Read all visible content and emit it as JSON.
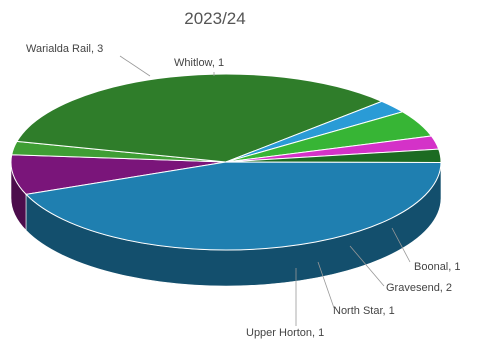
{
  "chart_data": {
    "type": "pie",
    "title": "2023/24",
    "slices": [
      {
        "label": "Warialda Rail, 3",
        "category": "Warialda Rail",
        "value": 3,
        "color": "#7a157a"
      },
      {
        "label": "Whitlow, 1",
        "category": "Whitlow",
        "value": 1,
        "color": "#3f9e34"
      },
      {
        "label": "",
        "category": "",
        "value": 14,
        "color": "#2f7d2a"
      },
      {
        "label": "Boonal, 1",
        "category": "Boonal",
        "value": 1,
        "color": "#2a9bd6"
      },
      {
        "label": "Gravesend, 2",
        "category": "Gravesend",
        "value": 2,
        "color": "#37b535"
      },
      {
        "label": "North Star, 1",
        "category": "North Star",
        "value": 1,
        "color": "#d432c8"
      },
      {
        "label": "Upper Horton, 1",
        "category": "Upper Horton",
        "value": 1,
        "color": "#1c6b22"
      },
      {
        "label": "",
        "category": "",
        "value": 18,
        "color": "#1f7fb0"
      }
    ],
    "style": "3d",
    "legend": "none"
  }
}
